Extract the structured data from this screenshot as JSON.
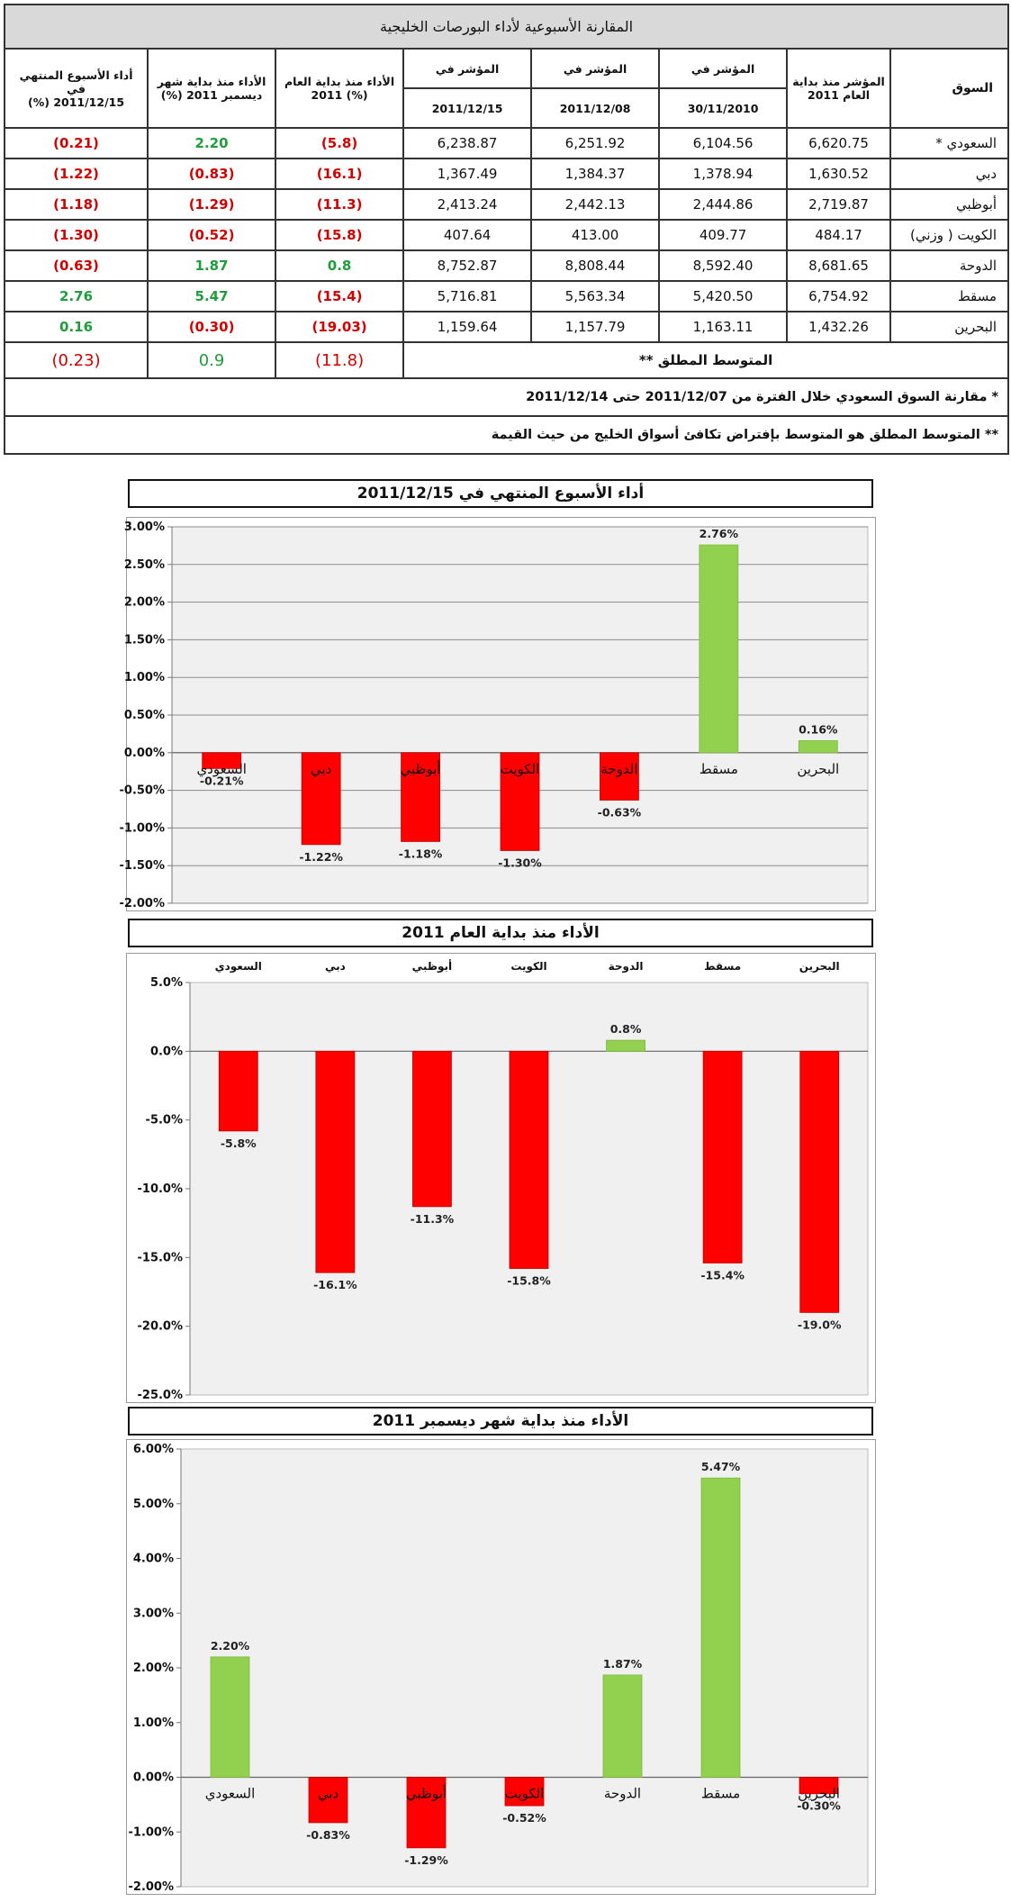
{
  "table": {
    "title": "المقارنة الأسبوعية لأداء البورصات الخليجية",
    "headers": {
      "market": "السوق",
      "start_index_line1": "المؤشر منذ بداية",
      "start_index_line2": "العام 2011",
      "index_in": "المؤشر في",
      "date1": "30/11/2010",
      "date2": "2011/12/08",
      "date3": "2011/12/15",
      "ytd_line1": "الأداء منذ بداية العام",
      "ytd_line2": "(%)             2011",
      "mtd_line1": "الأداء منذ بداية شهر",
      "mtd_line2": "ديسمبر     2011     (%)",
      "week_line1": "أداء الأسبوع المنتهي في",
      "week_line2": "2011/12/15     (%)"
    },
    "rows": [
      {
        "market": "السعودي *",
        "start": "6,620.75",
        "d1": "6,104.56",
        "d2": "6,251.92",
        "d3": "6,238.87",
        "ytd": "(5.8)",
        "ytd_c": "neg",
        "mtd": "2.20",
        "mtd_c": "pos",
        "week": "(0.21)",
        "week_c": "neg"
      },
      {
        "market": "دبي",
        "start": "1,630.52",
        "d1": "1,378.94",
        "d2": "1,384.37",
        "d3": "1,367.49",
        "ytd": "(16.1)",
        "ytd_c": "neg",
        "mtd": "(0.83)",
        "mtd_c": "neg",
        "week": "(1.22)",
        "week_c": "neg"
      },
      {
        "market": "أبوظبي",
        "start": "2,719.87",
        "d1": "2,444.86",
        "d2": "2,442.13",
        "d3": "2,413.24",
        "ytd": "(11.3)",
        "ytd_c": "neg",
        "mtd": "(1.29)",
        "mtd_c": "neg",
        "week": "(1.18)",
        "week_c": "neg"
      },
      {
        "market": "الكويت ( وزني)",
        "start": "484.17",
        "d1": "409.77",
        "d2": "413.00",
        "d3": "407.64",
        "ytd": "(15.8)",
        "ytd_c": "neg",
        "mtd": "(0.52)",
        "mtd_c": "neg",
        "week": "(1.30)",
        "week_c": "neg"
      },
      {
        "market": "الدوحة",
        "start": "8,681.65",
        "d1": "8,592.40",
        "d2": "8,808.44",
        "d3": "8,752.87",
        "ytd": "0.8",
        "ytd_c": "pos",
        "mtd": "1.87",
        "mtd_c": "pos",
        "week": "(0.63)",
        "week_c": "neg"
      },
      {
        "market": "مسقط",
        "start": "6,754.92",
        "d1": "5,420.50",
        "d2": "5,563.34",
        "d3": "5,716.81",
        "ytd": "(15.4)",
        "ytd_c": "neg",
        "mtd": "5.47",
        "mtd_c": "pos",
        "week": "2.76",
        "week_c": "pos"
      },
      {
        "market": "البحرين",
        "start": "1,432.26",
        "d1": "1,163.11",
        "d2": "1,157.79",
        "d3": "1,159.64",
        "ytd": "(19.03)",
        "ytd_c": "neg",
        "mtd": "(0.30)",
        "mtd_c": "neg",
        "week": "0.16",
        "week_c": "pos"
      }
    ],
    "average": {
      "label": "المتوسط المطلق **",
      "ytd": "(11.8)",
      "ytd_c": "neg",
      "mtd": "0.9",
      "mtd_c": "pos",
      "week": "(0.23)",
      "week_c": "neg"
    },
    "note1": "*  مقارنة السوق السعودي  خلال الفترة من 2011/12/07 حتى 2011/12/14",
    "note2": "** المتوسط المطلق هو المتوسط بإفتراض تكافئ أسواق الخليج من حيث القيمة"
  },
  "colors": {
    "positive_bar": "#92d050",
    "negative_bar": "#ff0000",
    "positive_text": "#1e9e3a",
    "negative_text": "#d40000",
    "plot_bg": "#f0f0f0"
  },
  "chart_data": [
    {
      "type": "bar",
      "title": "أداء الأسبوع المنتهي في 2011/12/15",
      "categories": [
        "السعودي",
        "دبي",
        "أبوظبي",
        "الكويت",
        "الدوحة",
        "مسقط",
        "البحرين"
      ],
      "values": [
        -0.21,
        -1.22,
        -1.18,
        -1.3,
        -0.63,
        2.76,
        0.16
      ],
      "data_labels": [
        "-0.21%",
        "-1.22%",
        "-1.18%",
        "-1.30%",
        "-0.63%",
        "2.76%",
        "0.16%"
      ],
      "y_ticks": [
        "3.00%",
        "2.50%",
        "2.00%",
        "1.50%",
        "1.00%",
        "0.50%",
        "0.00%",
        "-0.50%",
        "-1.00%",
        "-1.50%",
        "-2.00%"
      ],
      "ylim": [
        -2.0,
        3.0
      ],
      "grid": true,
      "category_labels_position": "axis"
    },
    {
      "type": "bar",
      "title": "الأداء منذ بداية العام 2011",
      "categories": [
        "السعودي",
        "دبي",
        "أبوظبي",
        "الكويت",
        "الدوحة",
        "مسقط",
        "البحرين"
      ],
      "values": [
        -5.8,
        -16.1,
        -11.3,
        -15.8,
        0.8,
        -15.4,
        -19.0
      ],
      "data_labels": [
        "-5.8%",
        "-16.1%",
        "-11.3%",
        "-15.8%",
        "0.8%",
        "-15.4%",
        "-19.0%"
      ],
      "y_ticks": [
        "5.0%",
        "0.0%",
        "-5.0%",
        "-10.0%",
        "-15.0%",
        "-20.0%",
        "-25.0%"
      ],
      "ylim": [
        -25.0,
        5.0
      ],
      "grid": false,
      "category_labels_position": "top"
    },
    {
      "type": "bar",
      "title": "الأداء منذ بداية شهر ديسمبر 2011",
      "categories": [
        "السعودي",
        "دبي",
        "أبوظبي",
        "الكويت",
        "الدوحة",
        "مسقط",
        "البحرين"
      ],
      "values": [
        2.2,
        -0.83,
        -1.29,
        -0.52,
        1.87,
        5.47,
        -0.3
      ],
      "data_labels": [
        "2.20%",
        "-0.83%",
        "-1.29%",
        "-0.52%",
        "1.87%",
        "5.47%",
        "-0.30%"
      ],
      "y_ticks": [
        "6.00%",
        "5.00%",
        "4.00%",
        "3.00%",
        "2.00%",
        "1.00%",
        "0.00%",
        "-1.00%",
        "-2.00%"
      ],
      "ylim": [
        -2.0,
        6.0
      ],
      "grid": false,
      "category_labels_position": "axis"
    }
  ]
}
